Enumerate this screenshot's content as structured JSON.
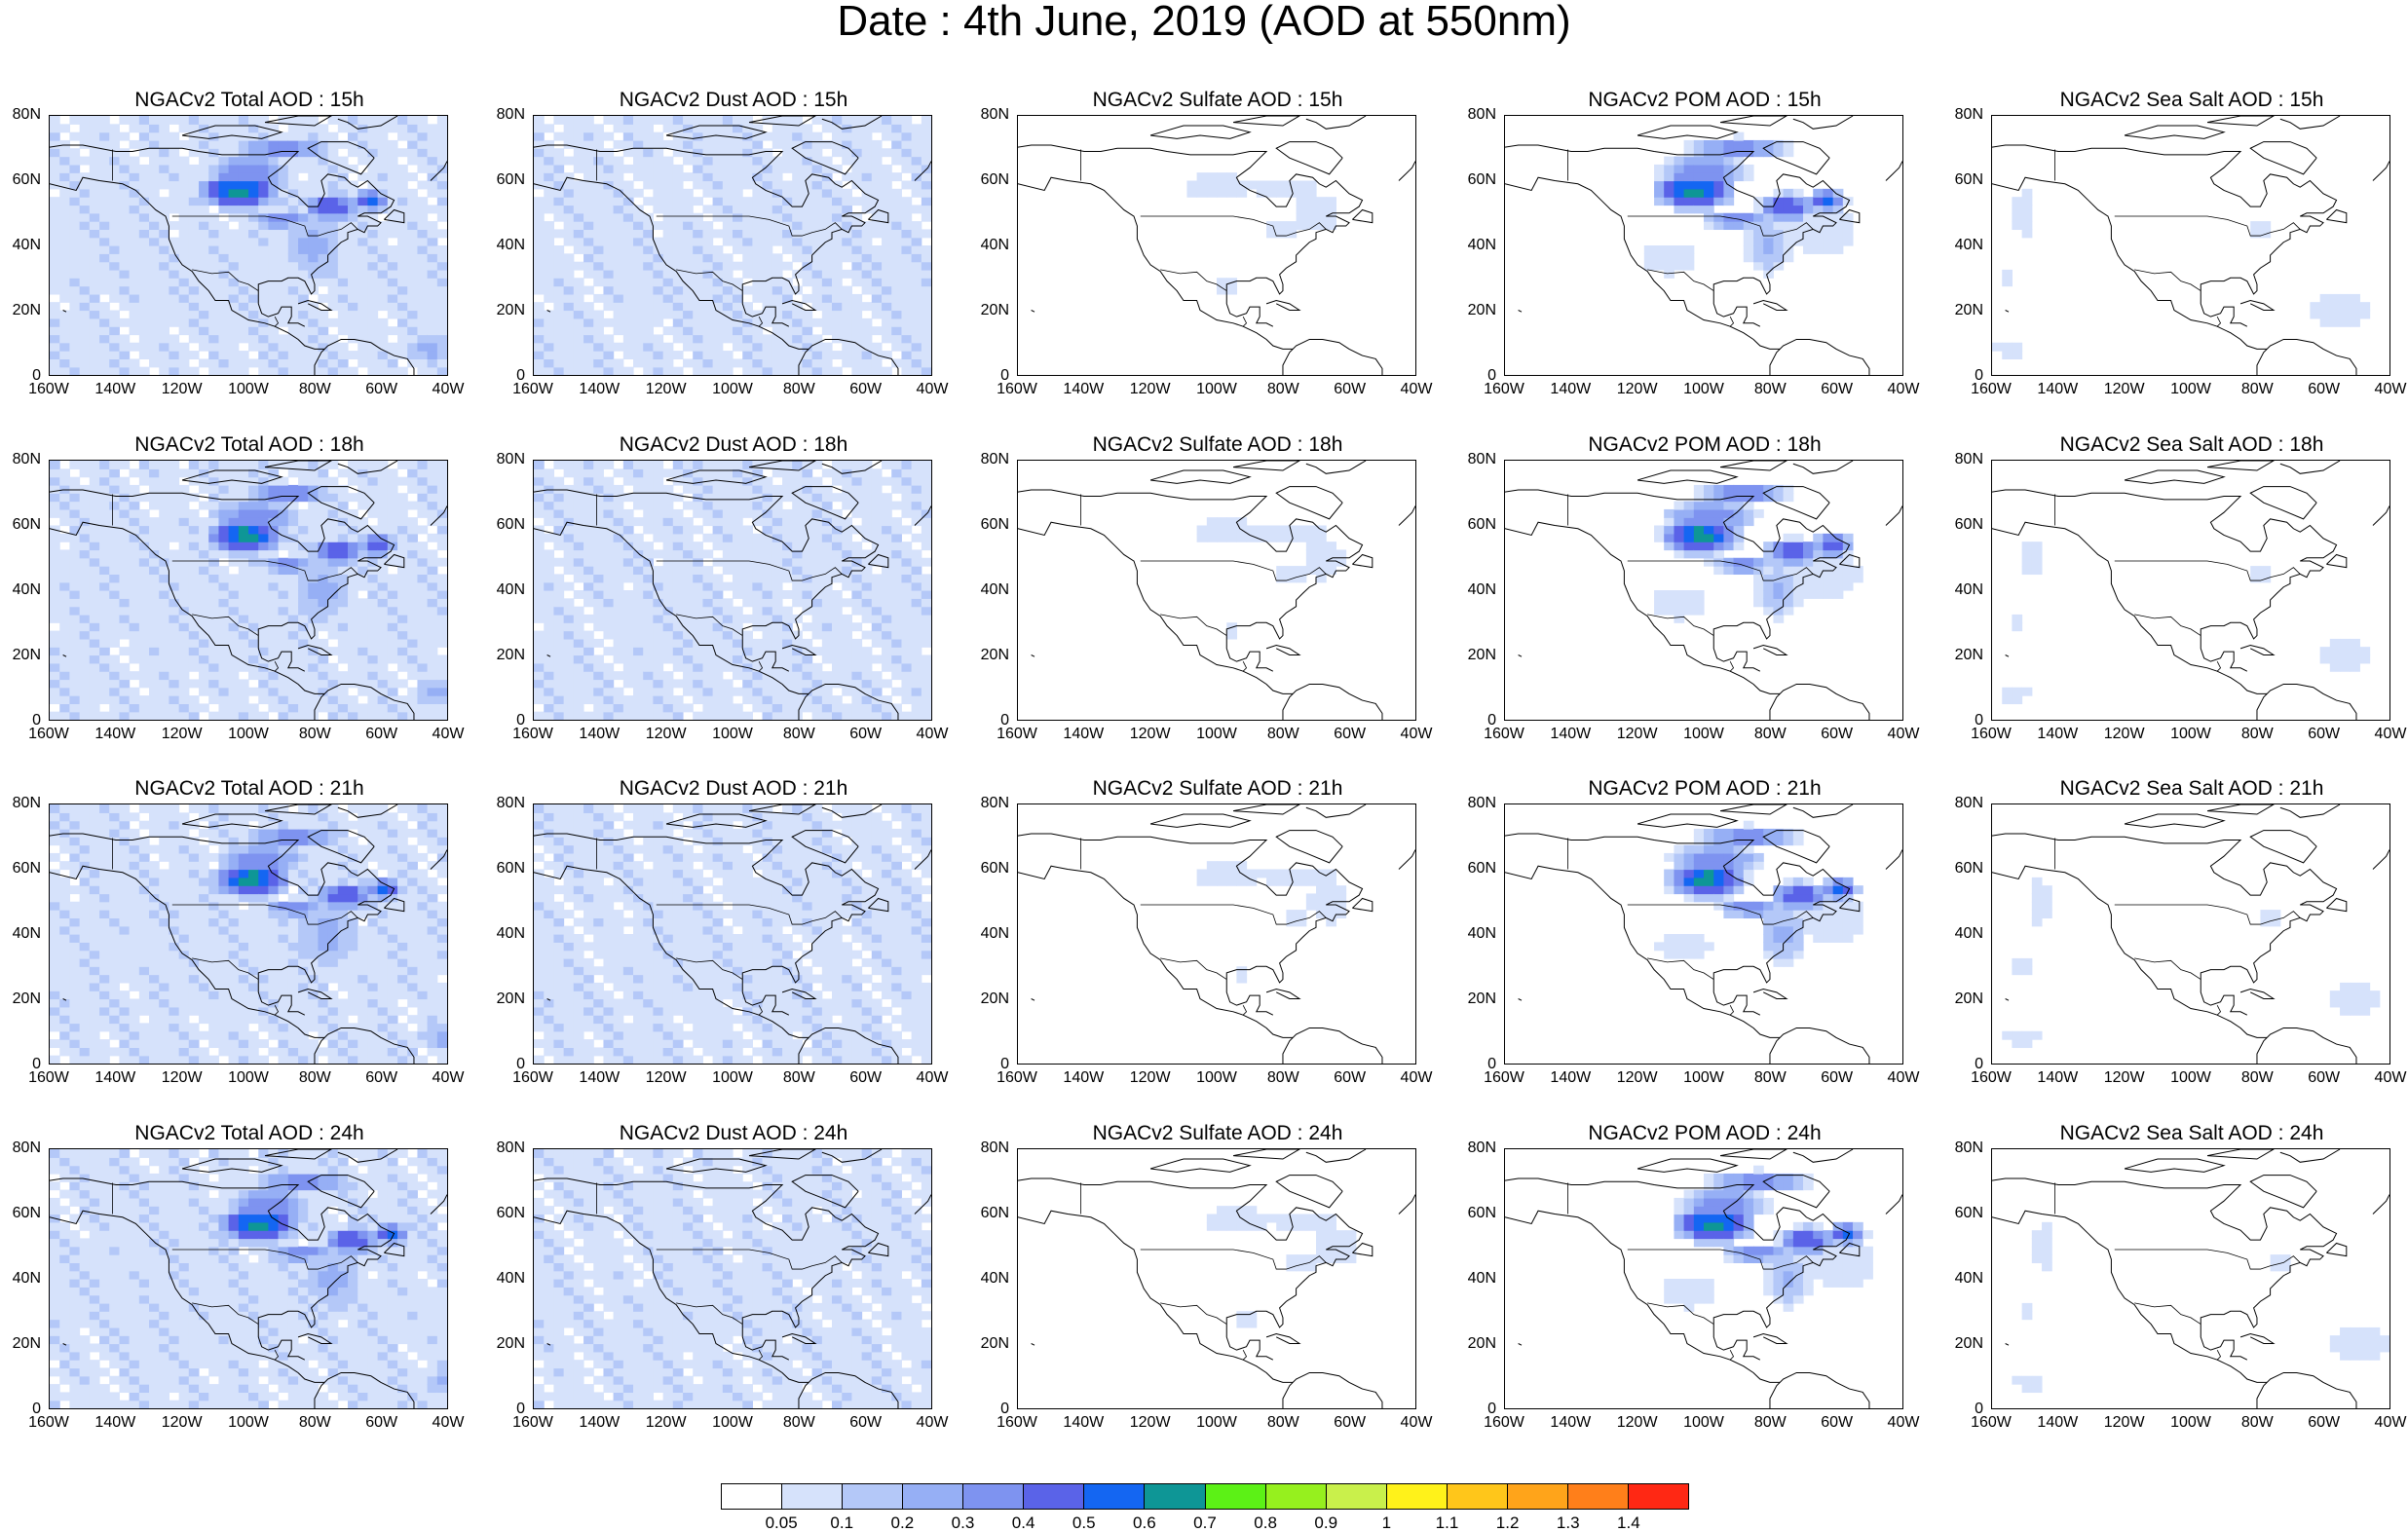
{
  "title": "Date : 4th June, 2019 (AOD at 550nm)",
  "x_ticks": [
    "160W",
    "140W",
    "120W",
    "100W",
    "80W",
    "60W",
    "40W"
  ],
  "y_ticks": [
    "80N",
    "60N",
    "40N",
    "20N",
    "0"
  ],
  "columns": [
    {
      "key": "total",
      "titles": [
        "NGACv2 Total AOD : 15h",
        "NGACv2 Total AOD : 18h",
        "NGACv2 Total AOD : 21h",
        "NGACv2 Total AOD : 24h"
      ]
    },
    {
      "key": "dust",
      "titles": [
        "NGACv2 Dust AOD : 15h",
        "NGACv2 Dust AOD : 18h",
        "NGACv2 Dust AOD : 21h",
        "NGACv2 Dust AOD : 24h"
      ]
    },
    {
      "key": "sulfate",
      "titles": [
        "NGACv2 Sulfate AOD : 15h",
        "NGACv2 Sulfate AOD : 18h",
        "NGACv2 Sulfate AOD : 21h",
        "NGACv2 Sulfate AOD : 24h"
      ]
    },
    {
      "key": "pom",
      "titles": [
        "NGACv2 POM AOD : 15h",
        "NGACv2 POM AOD : 18h",
        "NGACv2 POM AOD : 21h",
        "NGACv2 POM AOD : 24h"
      ]
    },
    {
      "key": "seasalt",
      "titles": [
        "NGACv2 Sea Salt AOD : 15h",
        "NGACv2 Sea Salt AOD : 18h",
        "NGACv2 Sea Salt AOD : 21h",
        "NGACv2 Sea Salt  AOD : 24h"
      ]
    }
  ],
  "colorbar": {
    "colors": [
      "#ffffff",
      "#d6e2fb",
      "#b4c8f8",
      "#96aff5",
      "#7e93f0",
      "#5a63e8",
      "#1466f2",
      "#0e9696",
      "#5cf116",
      "#96f01e",
      "#c9f04b",
      "#fff21a",
      "#ffc61a",
      "#ffa41a",
      "#ff7f1a",
      "#ff2814"
    ],
    "labels": [
      "0.05",
      "0.1",
      "0.2",
      "0.3",
      "0.4",
      "0.5",
      "0.6",
      "0.7",
      "0.8",
      "0.9",
      "1",
      "1.1",
      "1.2",
      "1.3",
      "1.4"
    ]
  }
}
